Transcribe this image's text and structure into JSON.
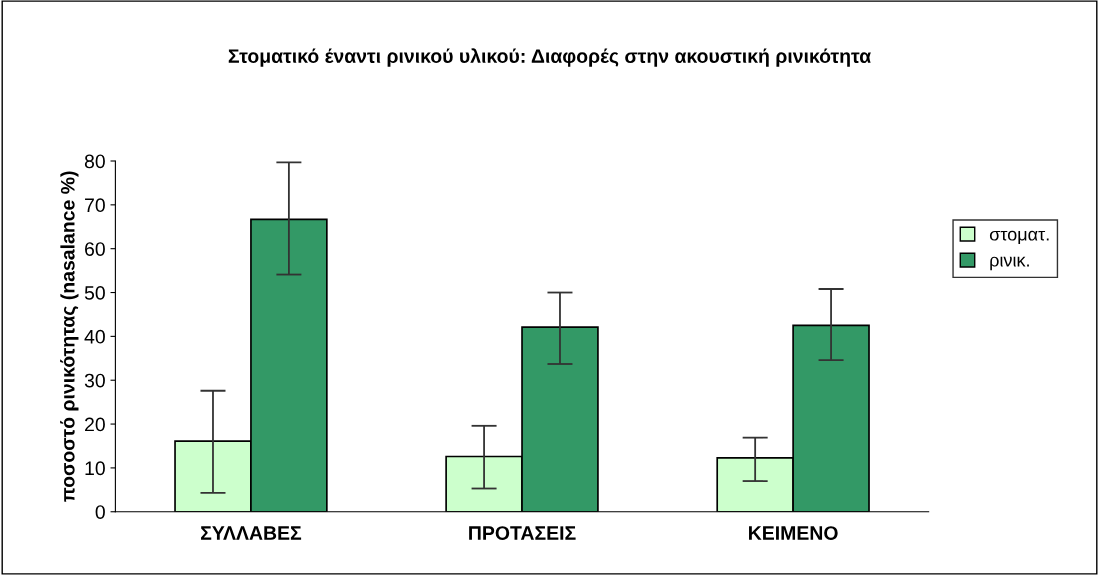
{
  "chart_data": {
    "type": "bar",
    "title": "Στοματικό έναντι ρινικού υλικού: Διαφορές στην ακουστική ρινικότητα",
    "ylabel": "ποσοστό ρινικότητας (nasalance %)",
    "categories": [
      "ΣΥΛΛΑΒΕΣ",
      "ΠΡΟΤΑΣΕΙΣ",
      "ΚΕΙΜΕΝΟ"
    ],
    "series": [
      {
        "name": "στοματ.",
        "color": "#ccffcc",
        "values": [
          16.1,
          12.6,
          12.3
        ],
        "errors": [
          [
            4.3,
            27.6
          ],
          [
            5.3,
            19.6
          ],
          [
            7.0,
            16.9
          ]
        ]
      },
      {
        "name": "ρινικ.",
        "color": "#339966",
        "values": [
          66.7,
          42.1,
          42.5
        ],
        "errors": [
          [
            54.1,
            79.7
          ],
          [
            33.7,
            50.0
          ],
          [
            34.6,
            50.8
          ]
        ]
      }
    ],
    "ylim": [
      0,
      80
    ],
    "yticks": [
      0,
      10,
      20,
      30,
      40,
      50,
      60,
      70,
      80
    ],
    "grid": false,
    "legend": "right"
  }
}
